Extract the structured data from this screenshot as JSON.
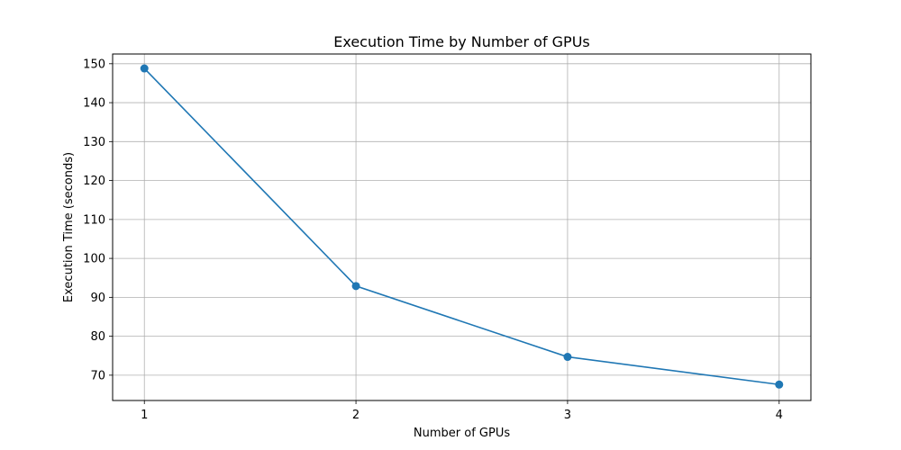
{
  "chart_data": {
    "type": "line",
    "title": "Execution Time by Number of GPUs",
    "xlabel": "Number of GPUs",
    "ylabel": "Execution Time (seconds)",
    "x": [
      1,
      2,
      3,
      4
    ],
    "series": [
      {
        "values": [
          148.8,
          92.9,
          74.7,
          67.6
        ],
        "color": "#1f77b4",
        "marker": "circle"
      }
    ],
    "xticks": [
      1,
      2,
      3,
      4
    ],
    "yticks": [
      70,
      80,
      90,
      100,
      110,
      120,
      130,
      140,
      150
    ],
    "xlim": [
      0.85,
      4.15
    ],
    "ylim": [
      63.5,
      152.5
    ],
    "grid": true
  }
}
